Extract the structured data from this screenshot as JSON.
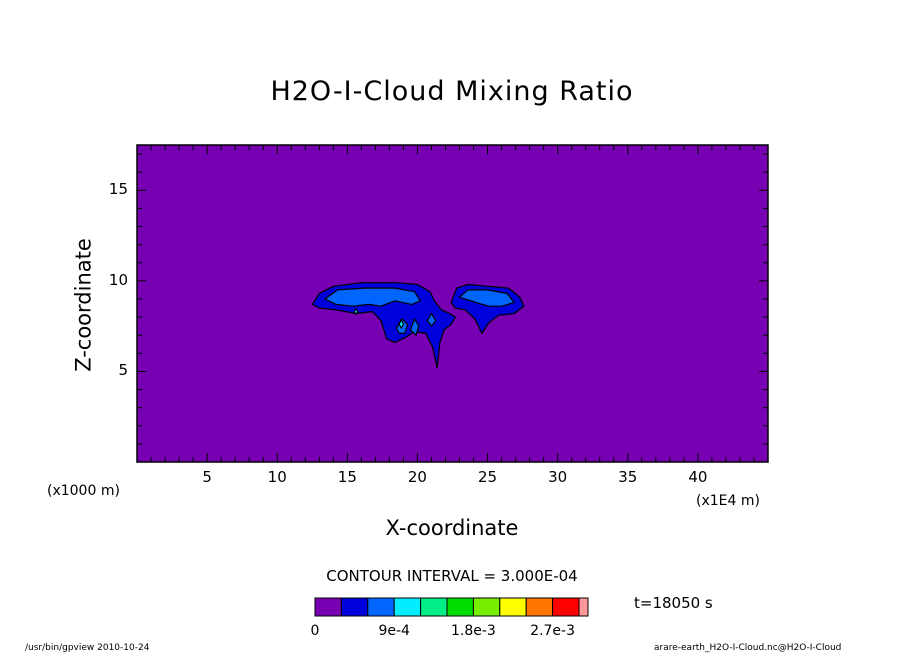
{
  "chart_data": {
    "type": "heatmap",
    "title": "H2O-I-Cloud Mixing Ratio",
    "xlabel": "X-coordinate",
    "ylabel": "Z-coordinate",
    "x_unit_left": "(x1000 m)",
    "x_unit_right": "(x1E4 m)",
    "xlim": [
      0,
      45
    ],
    "ylim": [
      0,
      17.5
    ],
    "x_ticks": [
      "5",
      "10",
      "15",
      "20",
      "25",
      "30",
      "35",
      "40"
    ],
    "y_ticks": [
      "5",
      "10",
      "15"
    ],
    "x_tick_values": [
      5,
      10,
      15,
      20,
      25,
      30,
      35,
      40
    ],
    "y_tick_values": [
      5,
      10,
      15
    ],
    "contour_interval_text": "CONTOUR INTERVAL = 3.000E-04",
    "time_text": "t=18050 s",
    "colorbar": {
      "colors": [
        "#7700b3",
        "#0000dd",
        "#0066ff",
        "#00eeff",
        "#00ee88",
        "#00dd00",
        "#77ee00",
        "#ffff00",
        "#ff7700",
        "#ff0000",
        "#ff9999"
      ],
      "labels": [
        "0",
        "9e-4",
        "1.8e-3",
        "2.7e-3"
      ],
      "label_positions": [
        0,
        3,
        6,
        9
      ]
    },
    "regions": [
      {
        "level": 1,
        "points": [
          [
            12.5,
            8.7
          ],
          [
            13.0,
            9.3
          ],
          [
            14.0,
            9.7
          ],
          [
            16.0,
            9.9
          ],
          [
            18.5,
            9.9
          ],
          [
            20.0,
            9.8
          ],
          [
            20.9,
            9.4
          ],
          [
            21.2,
            8.9
          ],
          [
            21.7,
            8.4
          ],
          [
            22.3,
            8.2
          ],
          [
            22.7,
            8.0
          ],
          [
            22.4,
            7.6
          ],
          [
            21.9,
            7.3
          ],
          [
            21.6,
            6.6
          ],
          [
            21.4,
            5.2
          ],
          [
            21.1,
            6.3
          ],
          [
            20.6,
            7.1
          ],
          [
            19.8,
            7.2
          ],
          [
            19.2,
            6.9
          ],
          [
            18.4,
            6.6
          ],
          [
            17.8,
            6.8
          ],
          [
            17.4,
            7.8
          ],
          [
            16.8,
            8.3
          ],
          [
            15.6,
            8.2
          ],
          [
            14.2,
            8.4
          ],
          [
            13.0,
            8.5
          ]
        ]
      },
      {
        "level": 1,
        "points": [
          [
            22.4,
            8.8
          ],
          [
            22.8,
            9.6
          ],
          [
            23.6,
            9.8
          ],
          [
            25.0,
            9.7
          ],
          [
            26.5,
            9.6
          ],
          [
            27.3,
            9.1
          ],
          [
            27.6,
            8.6
          ],
          [
            26.9,
            8.2
          ],
          [
            25.8,
            8.1
          ],
          [
            25.1,
            7.7
          ],
          [
            24.6,
            7.1
          ],
          [
            24.1,
            7.9
          ],
          [
            23.4,
            8.4
          ],
          [
            22.7,
            8.5
          ]
        ]
      },
      {
        "level": 2,
        "points": [
          [
            13.4,
            9.0
          ],
          [
            14.3,
            9.5
          ],
          [
            16.2,
            9.6
          ],
          [
            18.4,
            9.6
          ],
          [
            19.8,
            9.4
          ],
          [
            20.2,
            8.9
          ],
          [
            19.6,
            8.7
          ],
          [
            18.4,
            8.9
          ],
          [
            17.4,
            8.6
          ],
          [
            16.5,
            8.7
          ],
          [
            15.4,
            8.6
          ],
          [
            14.2,
            8.7
          ]
        ]
      },
      {
        "level": 2,
        "points": [
          [
            23.0,
            9.1
          ],
          [
            23.6,
            9.5
          ],
          [
            25.0,
            9.5
          ],
          [
            26.4,
            9.3
          ],
          [
            26.9,
            8.8
          ],
          [
            26.0,
            8.6
          ],
          [
            25.1,
            8.6
          ],
          [
            24.2,
            8.8
          ]
        ]
      },
      {
        "level": 2,
        "points": [
          [
            18.5,
            7.4
          ],
          [
            18.9,
            7.9
          ],
          [
            19.3,
            7.6
          ],
          [
            19.1,
            7.1
          ],
          [
            18.7,
            7.1
          ]
        ]
      },
      {
        "level": 2,
        "points": [
          [
            19.5,
            7.3
          ],
          [
            19.8,
            7.9
          ],
          [
            20.1,
            7.5
          ],
          [
            19.9,
            7.0
          ]
        ]
      },
      {
        "level": 2,
        "points": [
          [
            20.7,
            7.8
          ],
          [
            21.0,
            8.2
          ],
          [
            21.3,
            7.8
          ],
          [
            21.0,
            7.5
          ]
        ]
      },
      {
        "level": 3,
        "points": [
          [
            18.7,
            7.6
          ],
          [
            18.85,
            7.85
          ],
          [
            19.0,
            7.6
          ],
          [
            18.85,
            7.4
          ]
        ]
      },
      {
        "level": 3,
        "points": [
          [
            15.5,
            8.3
          ],
          [
            15.6,
            8.45
          ],
          [
            15.75,
            8.3
          ],
          [
            15.6,
            8.15
          ]
        ]
      }
    ]
  },
  "footer": {
    "left": "/usr/bin/gpview   2010-10-24",
    "right": "arare-earth_H2O-I-Cloud.nc@H2O-I-Cloud"
  }
}
